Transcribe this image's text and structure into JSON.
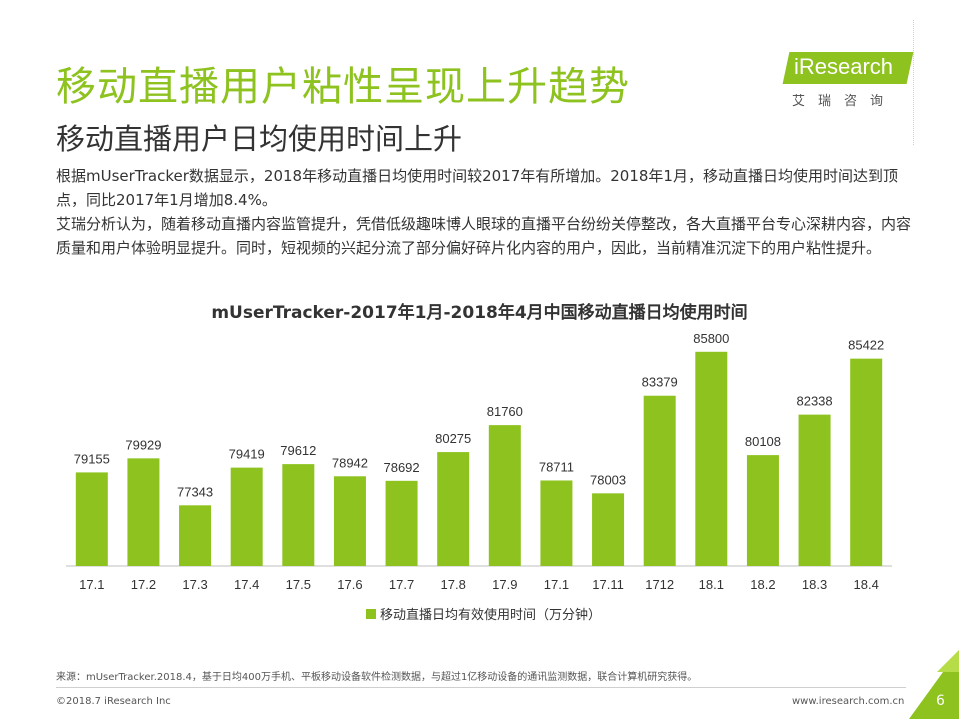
{
  "header": {
    "title": "移动直播用户粘性呈现上升趋势",
    "subtitle": "移动直播用户日均使用时间上升"
  },
  "logo": {
    "name": "iResearch",
    "sub": "艾瑞咨询"
  },
  "body": {
    "paragraph1": "根据mUserTracker数据显示，2018年移动直播日均使用时间较2017年有所增加。2018年1月，移动直播日均使用时间达到顶点，同比2017年1月增加8.4%。",
    "paragraph2": "艾瑞分析认为，随着移动直播内容监管提升，凭借低级趣味博人眼球的直播平台纷纷关停整改，各大直播平台专心深耕内容，内容质量和用户体验明显提升。同时，短视频的兴起分流了部分偏好碎片化内容的用户，因此，当前精准沉淀下的用户粘性提升。"
  },
  "colors": {
    "accent": "#8dc21f",
    "text": "#333333",
    "corner_dark": "#6a9a12",
    "corner_light": "#b6dd48"
  },
  "chart_data": {
    "type": "bar",
    "title": "mUserTracker-2017年1月-2018年4月中国移动直播日均使用时间",
    "categories": [
      "17.1",
      "17.2",
      "17.3",
      "17.4",
      "17.5",
      "17.6",
      "17.7",
      "17.8",
      "17.9",
      "17.1",
      "17.11",
      "1712",
      "18.1",
      "18.2",
      "18.3",
      "18.4"
    ],
    "series": [
      {
        "name": "移动直播日均有效使用时间（万分钟）",
        "values": [
          79155,
          79929,
          77343,
          79419,
          79612,
          78942,
          78692,
          80275,
          81760,
          78711,
          78003,
          83379,
          85800,
          80108,
          82338,
          85422
        ]
      }
    ],
    "ylim": [
      74000,
      87000
    ],
    "show_data_labels": true,
    "legend_position": "bottom",
    "grid": false
  },
  "footer": {
    "source": "来源：mUserTracker.2018.4，基于日均400万手机、平板移动设备软件检测数据，与超过1亿移动设备的通讯监测数据，联合计算机研究获得。",
    "copyright": "©2018.7 iResearch Inc",
    "website": "www.iresearch.com.cn",
    "page_number": "6"
  }
}
